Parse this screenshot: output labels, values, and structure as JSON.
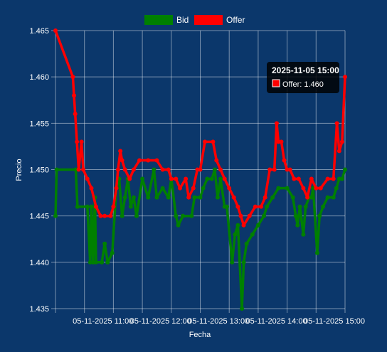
{
  "chart_data": {
    "type": "line",
    "xlabel": "Fecha",
    "ylabel": "Precio",
    "ylim": [
      1.435,
      1.465
    ],
    "y_ticks": [
      "1.465",
      "1.460",
      "1.455",
      "1.450",
      "1.445",
      "1.440",
      "1.435"
    ],
    "x_ticks": [
      {
        "t": 11.0,
        "label": "05-11-2025 11:00"
      },
      {
        "t": 12.0,
        "label": "05-11-2025 12:00"
      },
      {
        "t": 13.0,
        "label": "05-11-2025 13:00"
      },
      {
        "t": 14.0,
        "label": "05-11-2025 14:00"
      },
      {
        "t": 15.0,
        "label": "05-11-2025 15:00"
      }
    ],
    "legend_position": "top-center",
    "grid": true,
    "series": [
      {
        "name": "Bid",
        "color": "#008000",
        "points": [
          [
            10.0,
            1.445
          ],
          [
            10.02,
            1.45
          ],
          [
            10.35,
            1.45
          ],
          [
            10.38,
            1.446
          ],
          [
            10.55,
            1.446
          ],
          [
            10.6,
            1.44
          ],
          [
            10.62,
            1.446
          ],
          [
            10.65,
            1.44
          ],
          [
            10.68,
            1.447
          ],
          [
            10.7,
            1.44
          ],
          [
            10.8,
            1.44
          ],
          [
            10.85,
            1.442
          ],
          [
            10.9,
            1.44
          ],
          [
            10.98,
            1.441
          ],
          [
            11.05,
            1.448
          ],
          [
            11.1,
            1.449
          ],
          [
            11.15,
            1.445
          ],
          [
            11.2,
            1.447
          ],
          [
            11.25,
            1.449
          ],
          [
            11.3,
            1.446
          ],
          [
            11.35,
            1.447
          ],
          [
            11.4,
            1.445
          ],
          [
            11.5,
            1.449
          ],
          [
            11.6,
            1.447
          ],
          [
            11.7,
            1.45
          ],
          [
            11.75,
            1.447
          ],
          [
            11.85,
            1.448
          ],
          [
            11.95,
            1.447
          ],
          [
            12.0,
            1.449
          ],
          [
            12.08,
            1.445
          ],
          [
            12.12,
            1.444
          ],
          [
            12.2,
            1.445
          ],
          [
            12.35,
            1.445
          ],
          [
            12.4,
            1.447
          ],
          [
            12.5,
            1.447
          ],
          [
            12.55,
            1.448
          ],
          [
            12.62,
            1.449
          ],
          [
            12.7,
            1.449
          ],
          [
            12.75,
            1.45
          ],
          [
            12.8,
            1.447
          ],
          [
            12.85,
            1.449
          ],
          [
            12.92,
            1.446
          ],
          [
            12.96,
            1.446
          ],
          [
            13.05,
            1.44
          ],
          [
            13.1,
            1.443
          ],
          [
            13.15,
            1.444
          ],
          [
            13.22,
            1.435
          ],
          [
            13.25,
            1.44
          ],
          [
            13.3,
            1.442
          ],
          [
            13.4,
            1.443
          ],
          [
            13.5,
            1.444
          ],
          [
            13.6,
            1.445
          ],
          [
            13.65,
            1.446
          ],
          [
            13.75,
            1.447
          ],
          [
            13.85,
            1.448
          ],
          [
            14.0,
            1.448
          ],
          [
            14.1,
            1.447
          ],
          [
            14.15,
            1.445
          ],
          [
            14.18,
            1.444
          ],
          [
            14.22,
            1.446
          ],
          [
            14.28,
            1.443
          ],
          [
            14.32,
            1.446
          ],
          [
            14.38,
            1.447
          ],
          [
            14.42,
            1.447
          ],
          [
            14.45,
            1.448
          ],
          [
            14.52,
            1.441
          ],
          [
            14.56,
            1.445
          ],
          [
            14.62,
            1.446
          ],
          [
            14.7,
            1.447
          ],
          [
            14.8,
            1.447
          ],
          [
            14.85,
            1.448
          ],
          [
            14.9,
            1.449
          ],
          [
            14.95,
            1.449
          ],
          [
            15.0,
            1.45
          ]
        ]
      },
      {
        "name": "Offer",
        "color": "#ff0000",
        "points": [
          [
            10.0,
            1.465
          ],
          [
            10.3,
            1.46
          ],
          [
            10.32,
            1.458
          ],
          [
            10.34,
            1.456
          ],
          [
            10.37,
            1.453
          ],
          [
            10.4,
            1.45
          ],
          [
            10.45,
            1.453
          ],
          [
            10.48,
            1.45
          ],
          [
            10.55,
            1.449
          ],
          [
            10.62,
            1.448
          ],
          [
            10.7,
            1.446
          ],
          [
            10.78,
            1.445
          ],
          [
            10.85,
            1.445
          ],
          [
            10.95,
            1.445
          ],
          [
            11.0,
            1.446
          ],
          [
            11.05,
            1.448
          ],
          [
            11.08,
            1.45
          ],
          [
            11.12,
            1.452
          ],
          [
            11.15,
            1.451
          ],
          [
            11.2,
            1.45
          ],
          [
            11.28,
            1.449
          ],
          [
            11.35,
            1.45
          ],
          [
            11.45,
            1.451
          ],
          [
            11.6,
            1.451
          ],
          [
            11.75,
            1.451
          ],
          [
            11.85,
            1.45
          ],
          [
            11.95,
            1.45
          ],
          [
            12.0,
            1.449
          ],
          [
            12.08,
            1.449
          ],
          [
            12.15,
            1.448
          ],
          [
            12.25,
            1.449
          ],
          [
            12.3,
            1.447
          ],
          [
            12.38,
            1.448
          ],
          [
            12.45,
            1.45
          ],
          [
            12.5,
            1.45
          ],
          [
            12.58,
            1.453
          ],
          [
            12.72,
            1.453
          ],
          [
            12.78,
            1.451
          ],
          [
            12.85,
            1.45
          ],
          [
            12.92,
            1.449
          ],
          [
            13.0,
            1.448
          ],
          [
            13.08,
            1.447
          ],
          [
            13.15,
            1.446
          ],
          [
            13.2,
            1.445
          ],
          [
            13.25,
            1.444
          ],
          [
            13.35,
            1.445
          ],
          [
            13.45,
            1.446
          ],
          [
            13.55,
            1.446
          ],
          [
            13.62,
            1.447
          ],
          [
            13.7,
            1.45
          ],
          [
            13.78,
            1.45
          ],
          [
            13.82,
            1.455
          ],
          [
            13.85,
            1.453
          ],
          [
            13.9,
            1.453
          ],
          [
            13.95,
            1.451
          ],
          [
            14.0,
            1.45
          ],
          [
            14.05,
            1.45
          ],
          [
            14.12,
            1.449
          ],
          [
            14.2,
            1.449
          ],
          [
            14.28,
            1.448
          ],
          [
            14.35,
            1.447
          ],
          [
            14.42,
            1.449
          ],
          [
            14.5,
            1.448
          ],
          [
            14.58,
            1.448
          ],
          [
            14.7,
            1.449
          ],
          [
            14.8,
            1.449
          ],
          [
            14.86,
            1.455
          ],
          [
            14.9,
            1.452
          ],
          [
            14.95,
            1.453
          ],
          [
            15.0,
            1.46
          ]
        ]
      }
    ],
    "tooltip": {
      "title": "2025-11-05 15:00",
      "label": "Offer: 1.460"
    }
  }
}
